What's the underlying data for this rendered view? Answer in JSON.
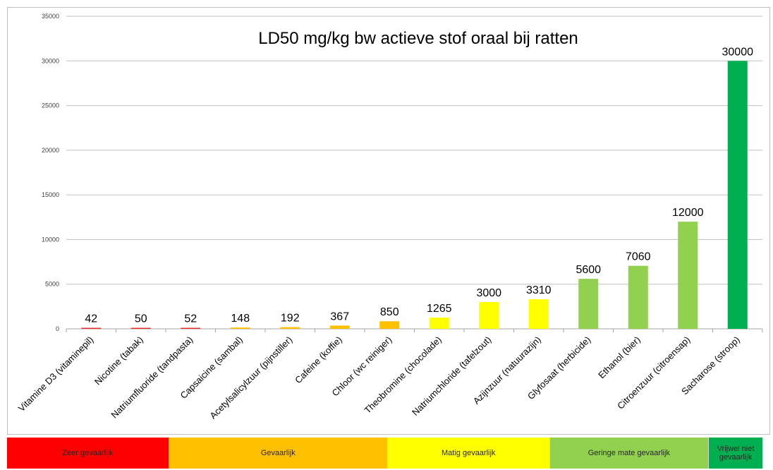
{
  "chart_data": {
    "type": "bar",
    "title": "LD50 mg/kg bw actieve stof oraal bij ratten",
    "xlabel": "",
    "ylabel": "",
    "ylim": [
      0,
      35000
    ],
    "yticks": [
      0,
      5000,
      10000,
      15000,
      20000,
      25000,
      30000,
      35000
    ],
    "grid": true,
    "categories": [
      "Vitamine D3 (vitaminepil)",
      "Nicotine (tabak)",
      "Natriumfluoride (tandpasta)",
      "Capsaicine (sambal)",
      "Acetylsalicylzuur (pijnstiller)",
      "Cafeine (koffie)",
      "Chloor (wc reiniger)",
      "Theobromine (chocolade)",
      "Natriumchloride (tafelzout)",
      "Azijnzuur (natuurazijn)",
      "Glyfosaat (herbicide)",
      "Ethanol (bier)",
      "Citroenzuur (citroensap)",
      "Sacharose (stroop)"
    ],
    "values": [
      42,
      50,
      52,
      148,
      192,
      367,
      850,
      1265,
      3000,
      3310,
      5600,
      7060,
      12000,
      30000
    ],
    "colors": [
      "#e53030",
      "#e53030",
      "#e53030",
      "#ffc000",
      "#ffc000",
      "#ffc000",
      "#ffc000",
      "#ffff00",
      "#ffff00",
      "#ffff00",
      "#92d050",
      "#92d050",
      "#92d050",
      "#00b050"
    ]
  },
  "legend_bands": [
    {
      "label": "Zeer gevaarlijk",
      "color": "#ff0000",
      "span": 0.212
    },
    {
      "label": "Gevaarlijk",
      "color": "#ffc000",
      "span": 0.286
    },
    {
      "label": "Matig gevaarlijk",
      "color": "#ffff00",
      "span": 0.212
    },
    {
      "label": "Geringe mate gevaarlijk",
      "color": "#92d050",
      "span": 0.208
    },
    {
      "label": "Vrijwel niet gevaarlijk",
      "color": "#00b050",
      "span": 0.07
    }
  ]
}
